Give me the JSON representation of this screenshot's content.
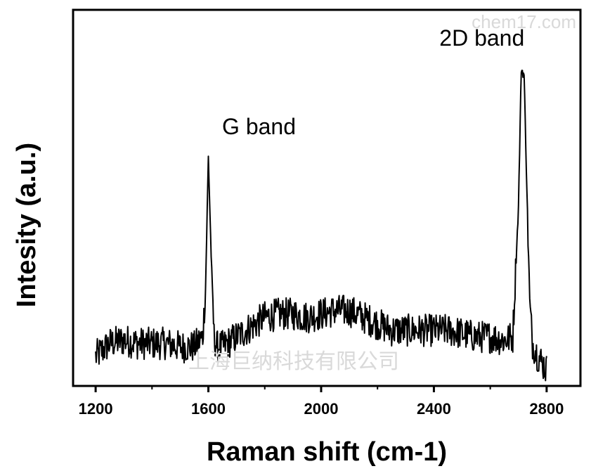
{
  "chart_data": {
    "type": "line",
    "title": "",
    "xlabel": "Raman shift (cm-1)",
    "ylabel": "Intesity (a.u.)",
    "xlim": [
      1120,
      2920
    ],
    "ylim": [
      -0.05,
      1.1
    ],
    "x_ticks": [
      1200,
      1600,
      2000,
      2400,
      2800
    ],
    "x_minor_ticks": [
      1400,
      1800,
      2200,
      2600
    ],
    "y_ticks_shown": false,
    "grid": false,
    "legend": "none",
    "line_color": "#000000",
    "series": [
      {
        "x": [
          1200,
          1250,
          1300,
          1350,
          1400,
          1450,
          1500,
          1550,
          1580,
          1590,
          1600,
          1610,
          1620,
          1630,
          1650,
          1700,
          1750,
          1800,
          1850,
          1900,
          1950,
          2000,
          2050,
          2100,
          2150,
          2200,
          2250,
          2300,
          2350,
          2400,
          2450,
          2500,
          2550,
          2600,
          2650,
          2680,
          2700,
          2710,
          2720,
          2730,
          2740,
          2750,
          2770,
          2800
        ],
        "y": [
          0.04,
          0.08,
          0.09,
          0.08,
          0.08,
          0.08,
          0.07,
          0.07,
          0.1,
          0.25,
          0.65,
          0.35,
          0.1,
          0.07,
          0.07,
          0.1,
          0.13,
          0.16,
          0.17,
          0.17,
          0.16,
          0.17,
          0.18,
          0.18,
          0.16,
          0.14,
          0.12,
          0.12,
          0.12,
          0.12,
          0.12,
          0.11,
          0.1,
          0.1,
          0.09,
          0.1,
          0.5,
          0.92,
          0.9,
          0.55,
          0.2,
          0.08,
          0.04,
          0.0
        ]
      }
    ],
    "annotations": [
      {
        "text": "G band",
        "x": 1600,
        "y": 0.72
      },
      {
        "text": "2D band",
        "x": 2715,
        "y": 0.99
      }
    ]
  },
  "watermarks": {
    "top_right": "chem17.com",
    "center": "上海巨纳科技有限公司"
  }
}
